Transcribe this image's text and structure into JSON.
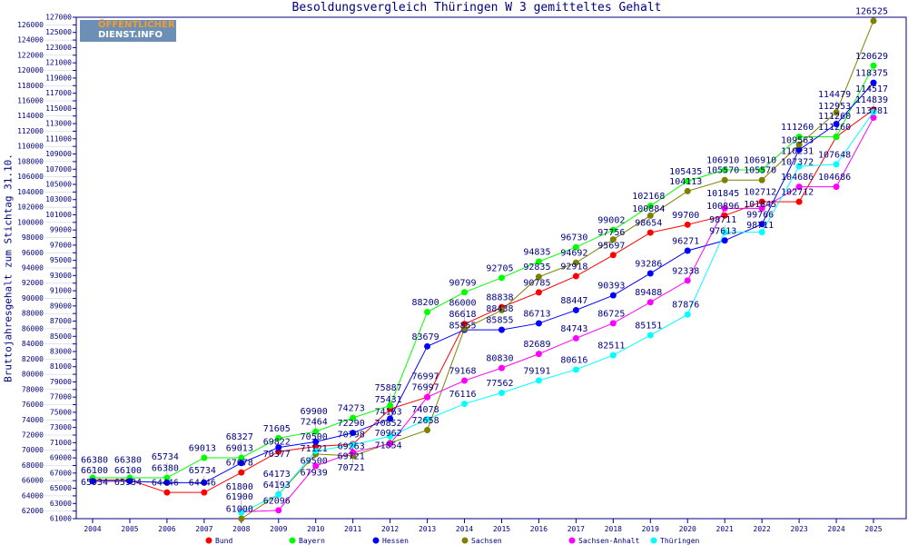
{
  "chart_data": {
    "type": "line",
    "title": "Besoldungsvergleich Thüringen W 3 gemitteltes Gehalt",
    "ylabel": "Bruttojahresgehalt zum Stichtag 31.10.",
    "xlabel": "",
    "logo": "ÖFFENTLICHER DIENST.INFO",
    "ylim": [
      61000,
      127000
    ],
    "ytick_step": 1000,
    "grid": false,
    "legend": "bottom",
    "x": [
      2004,
      2005,
      2006,
      2007,
      2008,
      2009,
      2010,
      2011,
      2012,
      2013,
      2014,
      2015,
      2016,
      2017,
      2018,
      2019,
      2020,
      2021,
      2022,
      2023,
      2024,
      2025
    ],
    "series": [
      {
        "name": "Bund",
        "color": "#ff0000",
        "values": [
          66100,
          66100,
          64446,
          64446,
          67078,
          69822,
          70500,
          70798,
          75431,
          76997,
          86618,
          88838,
          90785,
          92918,
          95697,
          98654,
          99700,
          100896,
          102712,
          102712,
          111260,
          114839
        ]
      },
      {
        "name": "Bayern",
        "color": "#00ff00",
        "values": [
          66380,
          66380,
          66380,
          69013,
          69013,
          71605,
          72464,
          74273,
          75887,
          88200,
          90799,
          92705,
          94835,
          96730,
          99002,
          102168,
          105435,
          106910,
          106910,
          111260,
          111260,
          120629
        ]
      },
      {
        "name": "Hessen",
        "color": "#0000ff",
        "values": [
          65934,
          65934,
          65734,
          65734,
          68327,
          70377,
          71121,
          72290,
          74163,
          83679,
          85855,
          85855,
          86713,
          88447,
          90393,
          93286,
          96271,
          97613,
          99766,
          109563,
          112953,
          118375
        ]
      },
      {
        "name": "Sachsen",
        "color": "#808000",
        "values": [
          null,
          null,
          null,
          null,
          61000,
          64193,
          69500,
          69263,
          70962,
          72658,
          86000,
          88438,
          92835,
          94692,
          97756,
          100884,
          104113,
          105570,
          105570,
          110231,
          114479,
          126525
        ]
      },
      {
        "name": "Sachsen-Anhalt",
        "color": "#ff00ff",
        "values": [
          null,
          null,
          null,
          null,
          61900,
          62096,
          67939,
          69721,
          70852,
          76997,
          79168,
          80830,
          82689,
          84743,
          86725,
          89488,
          92338,
          101845,
          101845,
          104686,
          104686,
          113781
        ]
      },
      {
        "name": "Thüringen",
        "color": "#00ffff",
        "values": [
          null,
          null,
          null,
          null,
          61800,
          64173,
          69900,
          70721,
          71854,
          74078,
          76116,
          77562,
          79191,
          80616,
          82511,
          85151,
          87876,
          98711,
          98711,
          107372,
          107648,
          114517
        ]
      }
    ]
  }
}
